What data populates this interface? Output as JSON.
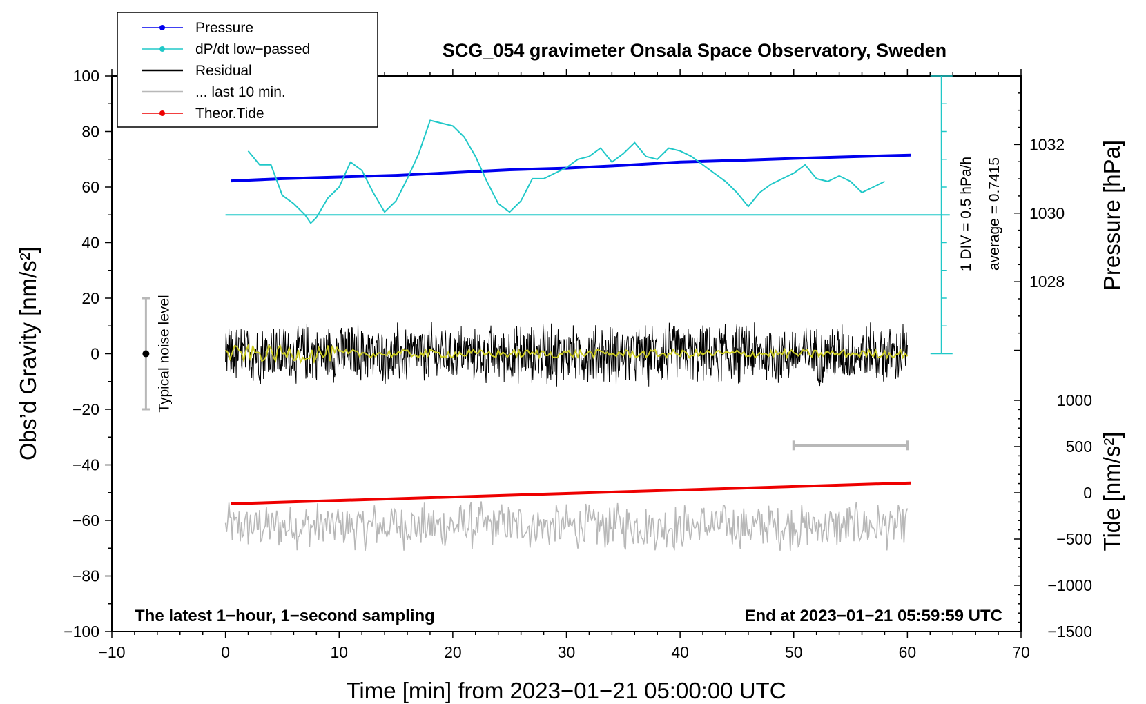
{
  "chart_data": {
    "type": "line",
    "title": "SCG_054 gravimeter Onsala Space Observatory, Sweden",
    "xlabel": "Time [min] from 2023−01−21 05:00:00 UTC",
    "ylabel_left": "Obs’d Gravity [nm/s²]",
    "ylabel_pressure": "Pressure [hPa]",
    "ylabel_tide": "Tide [nm/s²]",
    "xlim": [
      -10,
      70
    ],
    "ylim_left": [
      -100,
      100
    ],
    "x_ticks": [
      "−10",
      "0",
      "10",
      "20",
      "30",
      "40",
      "50",
      "60",
      "70"
    ],
    "y_left_ticks": [
      "−100",
      "−80",
      "−60",
      "−40",
      "−20",
      "0",
      "20",
      "40",
      "60",
      "80",
      "100"
    ],
    "pressure_ticks": [
      "1028",
      "1030",
      "1032"
    ],
    "pressure_range_hpa": [
      1025.9,
      1034.0
    ],
    "tide_ticks": [
      "−1500",
      "−1000",
      "−500",
      "0",
      "500",
      "1000"
    ],
    "tide_range": [
      -1500,
      1000
    ],
    "footer_left": "The latest 1−hour, 1−second sampling",
    "footer_right": "End at 2023−01−21 05:59:59 UTC",
    "noise_label": "Typical noise level",
    "noise_level": {
      "x": -7,
      "center": 0,
      "half_range": 20
    },
    "dpdt_scale_label": "1 DIV = 0.5 hPa/h",
    "dpdt_average_label": "average = 0.7415",
    "dpdt_reference_level": 50,
    "dpdt_scale_x": 63,
    "dpdt_scale_range": [
      0,
      100
    ],
    "last10_marker": {
      "x_start": 50,
      "x_end": 60,
      "y": -33
    },
    "legend": [
      {
        "label": "Pressure",
        "color": "#0000ee",
        "marker": true
      },
      {
        "label": "dP/dt low−passed",
        "color": "#20c8c8",
        "marker": true
      },
      {
        "label": "Residual",
        "color": "#000000",
        "marker": false
      },
      {
        "label": "... last 10 min.",
        "color": "#b8b8b8",
        "marker": false
      },
      {
        "label": "Theor.Tide",
        "color": "#ee0000",
        "marker": true
      }
    ],
    "series": [
      {
        "name": "Pressure",
        "axis": "left",
        "color": "#0000ee",
        "width": 4,
        "x": [
          0.5,
          5,
          10,
          15,
          20,
          25,
          30,
          35,
          40,
          45,
          50,
          55,
          60.3
        ],
        "y": [
          62.2,
          63.0,
          63.6,
          64.2,
          65.2,
          66.2,
          66.8,
          67.8,
          69.0,
          69.6,
          70.3,
          70.9,
          71.5
        ]
      },
      {
        "name": "dP/dt low−passed",
        "axis": "left",
        "color": "#20c8c8",
        "width": 2,
        "x": [
          2,
          3,
          4,
          5,
          6,
          7,
          7.5,
          8,
          9,
          10,
          11,
          12,
          13,
          14,
          15,
          16,
          17,
          18,
          19,
          20,
          21,
          22,
          23,
          24,
          25,
          26,
          27,
          28,
          29,
          30,
          31,
          32,
          33,
          34,
          35,
          36,
          37,
          38,
          39,
          40,
          41,
          42,
          43,
          44,
          45,
          46,
          47,
          48,
          49,
          50,
          51,
          52,
          53,
          54,
          55,
          56,
          57,
          58
        ],
        "y": [
          73,
          68,
          68,
          57,
          54,
          50,
          47,
          49,
          56,
          60,
          69,
          66,
          58,
          51,
          55,
          63,
          72,
          84,
          83,
          82,
          78,
          71,
          62,
          54,
          51,
          55,
          63,
          63,
          65,
          67,
          70,
          71,
          74,
          69,
          72,
          76,
          71,
          70,
          74,
          73,
          71,
          68,
          65,
          62,
          58,
          53,
          58,
          61,
          63,
          65,
          68,
          63,
          62,
          64,
          62,
          58,
          60,
          62
        ]
      },
      {
        "name": "Theor.Tide",
        "axis": "left",
        "color": "#ee0000",
        "width": 4,
        "x": [
          0.5,
          60.3
        ],
        "y": [
          -54,
          -46.5
        ]
      }
    ],
    "residual": {
      "color": "#000000",
      "x_start": 0,
      "x_end": 60,
      "center": 0,
      "amplitude_approx": 12,
      "smoothed_color": "#cccc22"
    },
    "last_10_min": {
      "color": "#b8b8b8",
      "x_start": 0,
      "x_end": 60,
      "center": -62,
      "amplitude_approx": 9
    }
  }
}
